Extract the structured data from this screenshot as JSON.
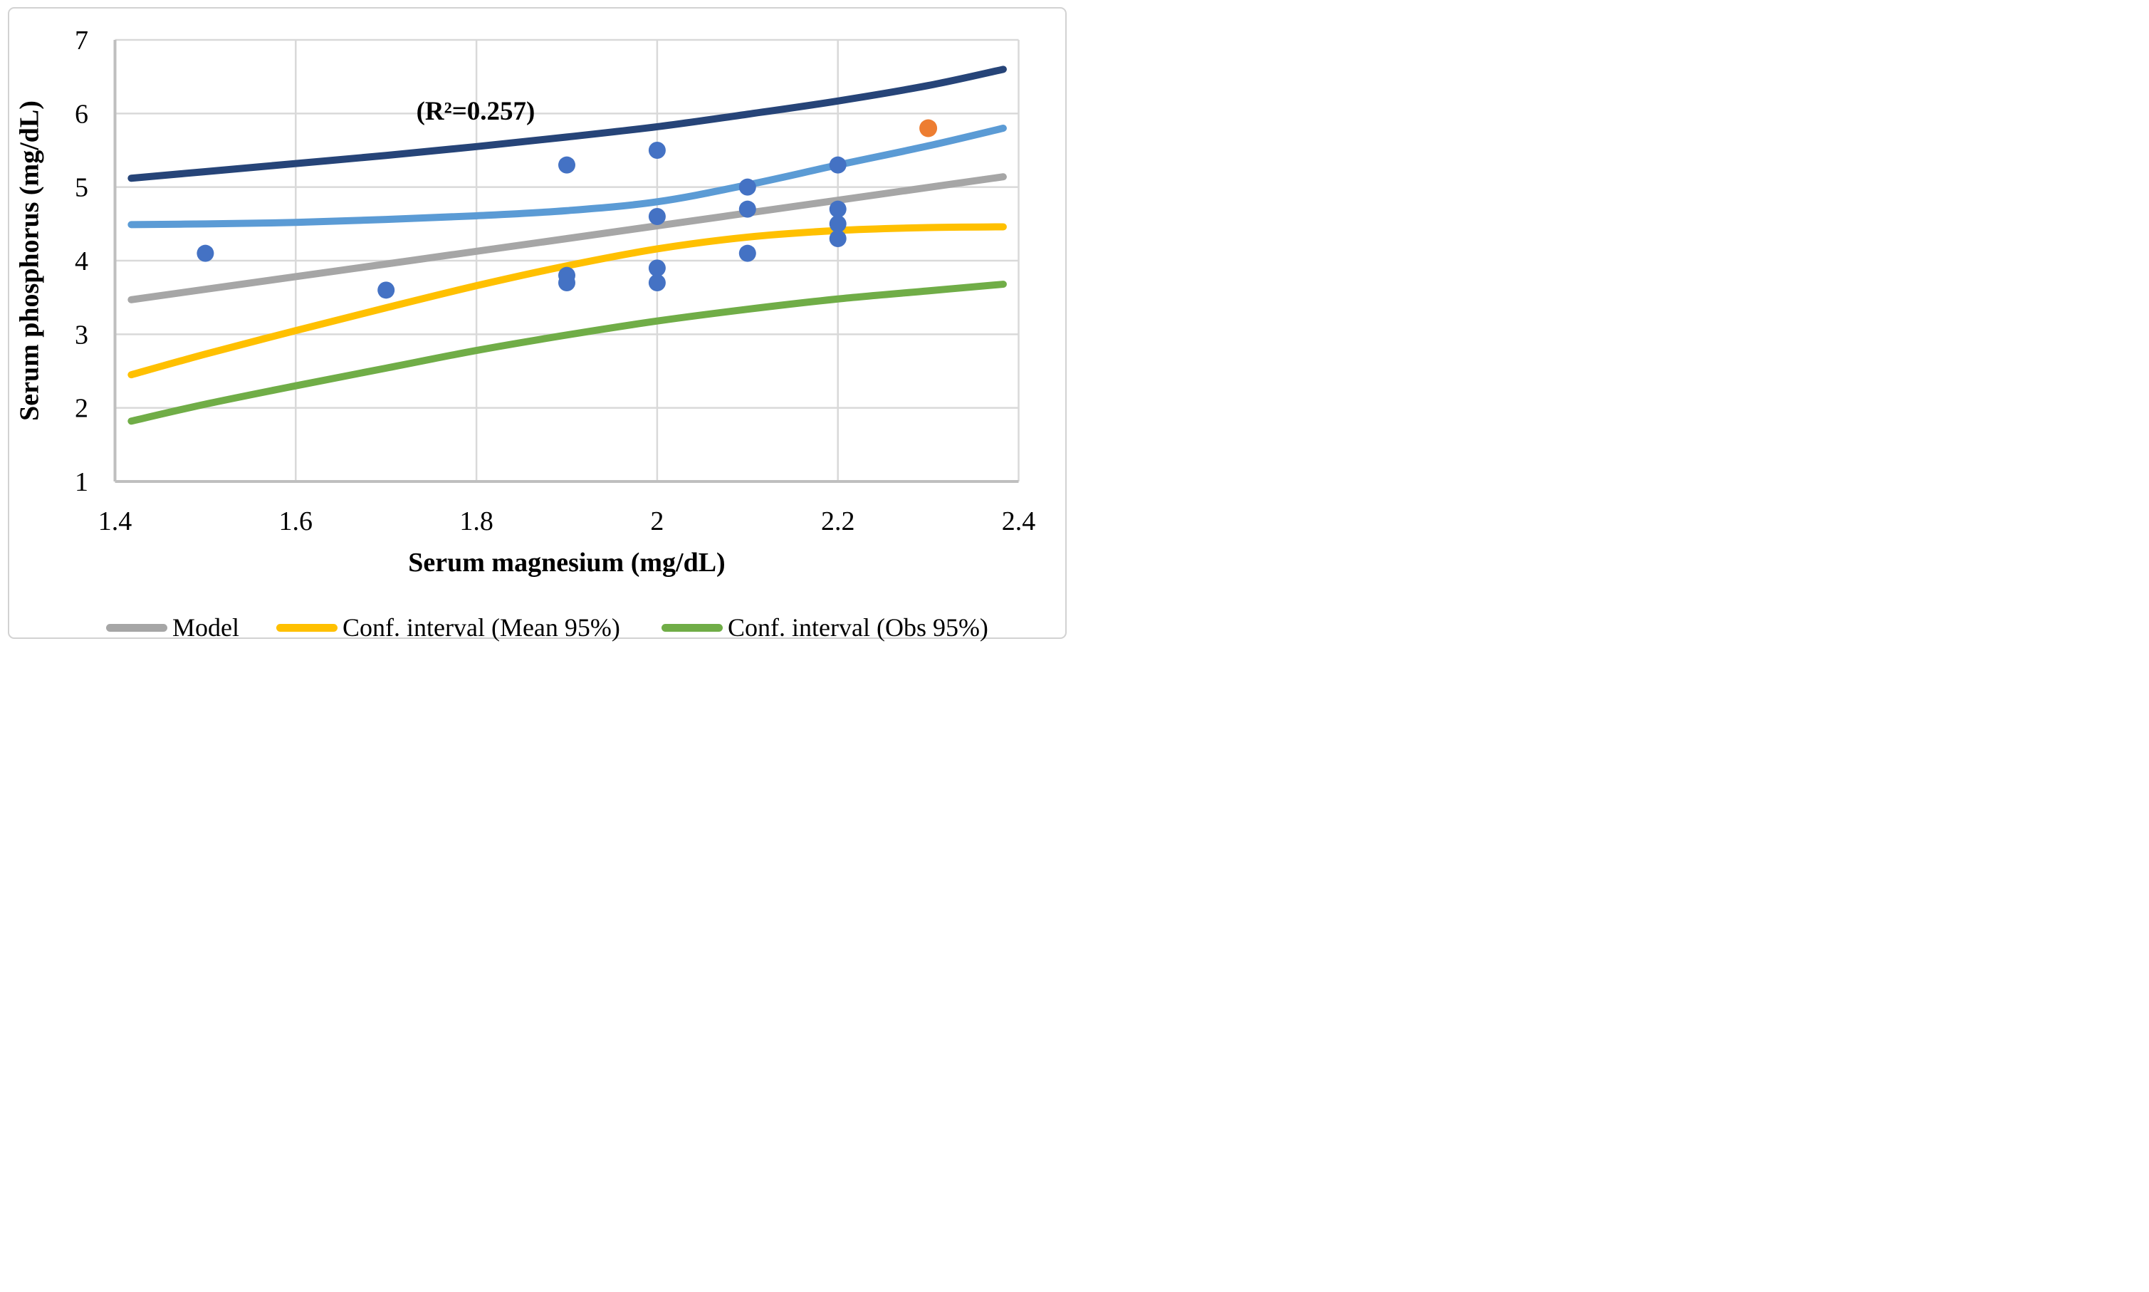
{
  "figure": {
    "background": "#FFFFFF",
    "border_color": "#D2D2D2"
  },
  "chart_data": {
    "type": "scatter",
    "annotation": "(R²=0.257)",
    "xlabel": "Serum magnesium (mg/dL)",
    "ylabel": "Serum phosphorus (mg/dL)",
    "xlim": [
      1.4,
      2.4
    ],
    "ylim": [
      1,
      7
    ],
    "grid": true,
    "legend_position": "bottom",
    "x_ticks": [
      {
        "label": "1.4",
        "value": 1.4
      },
      {
        "label": "1.6",
        "value": 1.6
      },
      {
        "label": "1.8",
        "value": 1.8
      },
      {
        "label": "2",
        "value": 2.0
      },
      {
        "label": "2.2",
        "value": 2.2
      },
      {
        "label": "2.4",
        "value": 2.4
      }
    ],
    "y_ticks": [
      {
        "label": "1",
        "value": 1
      },
      {
        "label": "2",
        "value": 2
      },
      {
        "label": "3",
        "value": 3
      },
      {
        "label": "4",
        "value": 4
      },
      {
        "label": "5",
        "value": 5
      },
      {
        "label": "6",
        "value": 6
      },
      {
        "label": "7",
        "value": 7
      }
    ],
    "scatter": {
      "name": "observations",
      "color": "#4472C4",
      "points": [
        [
          1.5,
          4.1
        ],
        [
          1.7,
          3.6
        ],
        [
          1.9,
          5.3
        ],
        [
          1.9,
          3.8
        ],
        [
          1.9,
          3.7
        ],
        [
          2.0,
          5.5
        ],
        [
          2.0,
          4.6
        ],
        [
          2.0,
          3.9
        ],
        [
          2.0,
          3.7
        ],
        [
          2.1,
          5.0
        ],
        [
          2.1,
          4.7
        ],
        [
          2.1,
          4.1
        ],
        [
          2.2,
          5.3
        ],
        [
          2.2,
          4.7
        ],
        [
          2.2,
          4.5
        ],
        [
          2.2,
          4.3
        ]
      ]
    },
    "highlight_point": {
      "name": "highlighted-observation",
      "color": "#ED7D31",
      "point": [
        2.3,
        5.8
      ]
    },
    "series": [
      {
        "name": "conf-interval-obs-95-upper",
        "color": "#264478",
        "points": [
          [
            1.418,
            5.12
          ],
          [
            1.5,
            5.21
          ],
          [
            1.6,
            5.32
          ],
          [
            1.7,
            5.43
          ],
          [
            1.8,
            5.55
          ],
          [
            1.9,
            5.68
          ],
          [
            2.0,
            5.82
          ],
          [
            2.1,
            5.99
          ],
          [
            2.2,
            6.17
          ],
          [
            2.3,
            6.38
          ],
          [
            2.383,
            6.6
          ]
        ]
      },
      {
        "name": "conf-interval-mean-95-upper",
        "color": "#5B9BD5",
        "points": [
          [
            1.418,
            4.49
          ],
          [
            1.5,
            4.5
          ],
          [
            1.6,
            4.52
          ],
          [
            1.7,
            4.56
          ],
          [
            1.8,
            4.61
          ],
          [
            1.9,
            4.68
          ],
          [
            2.0,
            4.8
          ],
          [
            2.1,
            5.03
          ],
          [
            2.2,
            5.3
          ],
          [
            2.3,
            5.56
          ],
          [
            2.383,
            5.8
          ]
        ]
      },
      {
        "name": "model",
        "color": "#A6A6A6",
        "points": [
          [
            1.418,
            3.47
          ],
          [
            1.9,
            4.3
          ],
          [
            2.383,
            5.14
          ]
        ]
      },
      {
        "name": "conf-interval-mean-95-lower",
        "color": "#FFC000",
        "points": [
          [
            1.418,
            2.45
          ],
          [
            1.5,
            2.73
          ],
          [
            1.6,
            3.05
          ],
          [
            1.7,
            3.36
          ],
          [
            1.8,
            3.66
          ],
          [
            1.9,
            3.93
          ],
          [
            2.0,
            4.16
          ],
          [
            2.1,
            4.32
          ],
          [
            2.2,
            4.41
          ],
          [
            2.3,
            4.45
          ],
          [
            2.383,
            4.46
          ]
        ]
      },
      {
        "name": "conf-interval-obs-95-lower",
        "color": "#70AD47",
        "points": [
          [
            1.418,
            1.82
          ],
          [
            1.5,
            2.05
          ],
          [
            1.6,
            2.3
          ],
          [
            1.7,
            2.54
          ],
          [
            1.8,
            2.78
          ],
          [
            1.9,
            2.99
          ],
          [
            2.0,
            3.18
          ],
          [
            2.1,
            3.34
          ],
          [
            2.2,
            3.48
          ],
          [
            2.3,
            3.59
          ],
          [
            2.383,
            3.68
          ]
        ]
      }
    ],
    "legend": [
      {
        "label": "Model",
        "color": "#A6A6A6"
      },
      {
        "label": "Conf. interval (Mean 95%)",
        "color": "#FFC000"
      },
      {
        "label": "Conf. interval (Obs 95%)",
        "color": "#70AD47"
      }
    ],
    "colors": {
      "gridline": "#D9D9D9",
      "axis_line": "#BFBFBF",
      "text": "#000000"
    }
  }
}
